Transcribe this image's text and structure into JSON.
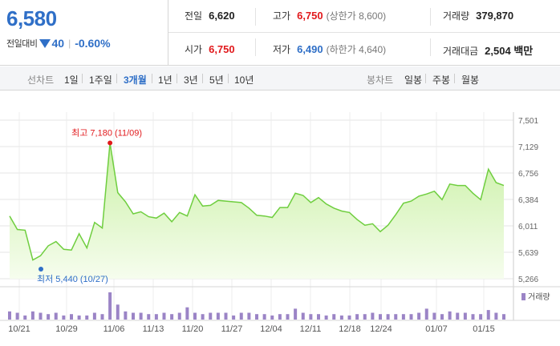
{
  "summary": {
    "price": "6,580",
    "change_label": "전일대비",
    "change_value": "40",
    "change_pct": "-0.60%",
    "prev_label": "전일",
    "prev_value": "6,620",
    "high_label": "고가",
    "high_value": "6,750",
    "high_sub": "(상한가 8,600)",
    "volume_label": "거래량",
    "volume_value": "379,870",
    "open_label": "시가",
    "open_value": "6,750",
    "low_label": "저가",
    "low_value": "6,490",
    "low_sub": "(하한가 4,640)",
    "amount_label": "거래대금",
    "amount_value": "2,504 백만"
  },
  "tabs": {
    "line_label": "선차트",
    "line_items": [
      "1일",
      "1주일",
      "3개월",
      "1년",
      "3년",
      "5년",
      "10년"
    ],
    "active": "3개월",
    "candle_label": "봉차트",
    "candle_items": [
      "일봉",
      "주봉",
      "월봉"
    ]
  },
  "chart_data": {
    "type": "area",
    "y_ticks": [
      "7,501",
      "7,129",
      "6,756",
      "6,384",
      "6,011",
      "5,639",
      "5,266"
    ],
    "ylim": [
      5266,
      7501
    ],
    "x_ticks": [
      "10/21",
      "10/29",
      "11/06",
      "11/13",
      "11/20",
      "11/27",
      "12/04",
      "12/11",
      "12/18",
      "12/24",
      "01/07",
      "01/15"
    ],
    "high_annotation": "최고 7,180 (11/09)",
    "low_annotation": "최저 5,440 (10/27)",
    "volume_label": "거래량",
    "price_series": [
      6150,
      5960,
      5950,
      5530,
      5590,
      5730,
      5790,
      5680,
      5670,
      5900,
      5700,
      6060,
      5980,
      7180,
      6480,
      6350,
      6180,
      6210,
      6140,
      6120,
      6190,
      6070,
      6200,
      6150,
      6450,
      6290,
      6300,
      6370,
      6360,
      6350,
      6340,
      6260,
      6160,
      6150,
      6130,
      6270,
      6270,
      6470,
      6440,
      6340,
      6410,
      6320,
      6260,
      6220,
      6200,
      6100,
      6020,
      6040,
      5930,
      6020,
      6170,
      6330,
      6360,
      6430,
      6460,
      6500,
      6380,
      6600,
      6580,
      6580,
      6470,
      6380,
      6810,
      6620,
      6580
    ],
    "volume_series": [
      30,
      25,
      15,
      30,
      25,
      20,
      25,
      15,
      20,
      15,
      15,
      25,
      20,
      100,
      55,
      30,
      25,
      25,
      20,
      20,
      25,
      20,
      25,
      45,
      25,
      20,
      25,
      25,
      25,
      15,
      25,
      25,
      20,
      20,
      15,
      20,
      20,
      40,
      25,
      20,
      20,
      15,
      20,
      15,
      15,
      20,
      20,
      25,
      20,
      20,
      20,
      20,
      20,
      25,
      40,
      25,
      20,
      30,
      25,
      25,
      20,
      20,
      35,
      25,
      20
    ],
    "colors": {
      "line": "#6fce3f",
      "fill_top": "#c9f0a4",
      "fill_bottom": "#f6fdee",
      "volume": "#9b84c6",
      "high": "#e1191c",
      "low": "#2f6fc7"
    }
  }
}
